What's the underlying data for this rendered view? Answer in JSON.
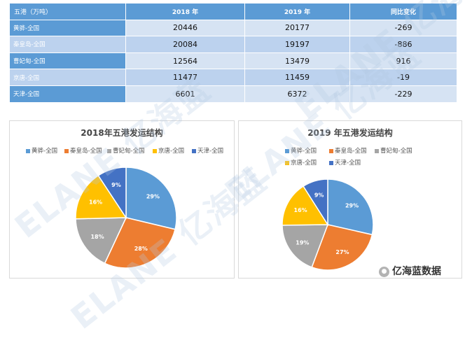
{
  "table": {
    "headers": [
      "五港（万吨）",
      "2018 年",
      "2019 年",
      "同比变化"
    ],
    "rows": [
      {
        "name": "黄骅-全国",
        "v2018": "20446",
        "v2019": "20177",
        "change": "-269"
      },
      {
        "name": "秦皇岛-全国",
        "v2018": "20084",
        "v2019": "19197",
        "change": "-886"
      },
      {
        "name": "曹妃甸-全国",
        "v2018": "12564",
        "v2019": "13479",
        "change": "916"
      },
      {
        "name": "京唐-全国",
        "v2018": "11477",
        "v2019": "11459",
        "change": "-19"
      },
      {
        "name": "天津-全国",
        "v2018": "6601",
        "v2019": "6372",
        "change": "-229"
      }
    ]
  },
  "chart_data": [
    {
      "type": "pie",
      "title": "2018年五港发运结构",
      "legend_position": "top",
      "categories": [
        "黄骅-全国",
        "秦皇岛-全国",
        "曹妃甸-全国",
        "京唐-全国",
        "天津-全国"
      ],
      "values": [
        20446,
        20084,
        12564,
        11477,
        6601
      ],
      "labels": [
        "29%",
        "28%",
        "18%",
        "16%",
        "9%"
      ],
      "colors": [
        "#5b9bd5",
        "#ed7d31",
        "#a5a5a5",
        "#ffc000",
        "#4472c4"
      ]
    },
    {
      "type": "pie",
      "title": "2019 年五港发运结构",
      "legend_position": "top",
      "categories": [
        "黄骅-全国",
        "秦皇岛-全国",
        "曹妃甸-全国",
        "京唐-全国",
        "天津-全国"
      ],
      "values": [
        20177,
        19197,
        13479,
        11459,
        6372
      ],
      "labels": [
        "29%",
        "27%",
        "19%",
        "16%",
        "9%"
      ],
      "colors": [
        "#5b9bd5",
        "#ed7d31",
        "#a5a5a5",
        "#ffc000",
        "#4472c4"
      ]
    }
  ],
  "watermark": "ELANE 亿海蓝",
  "brand": {
    "icon": "chat-bubble-icon",
    "text": "亿海蓝数据"
  }
}
